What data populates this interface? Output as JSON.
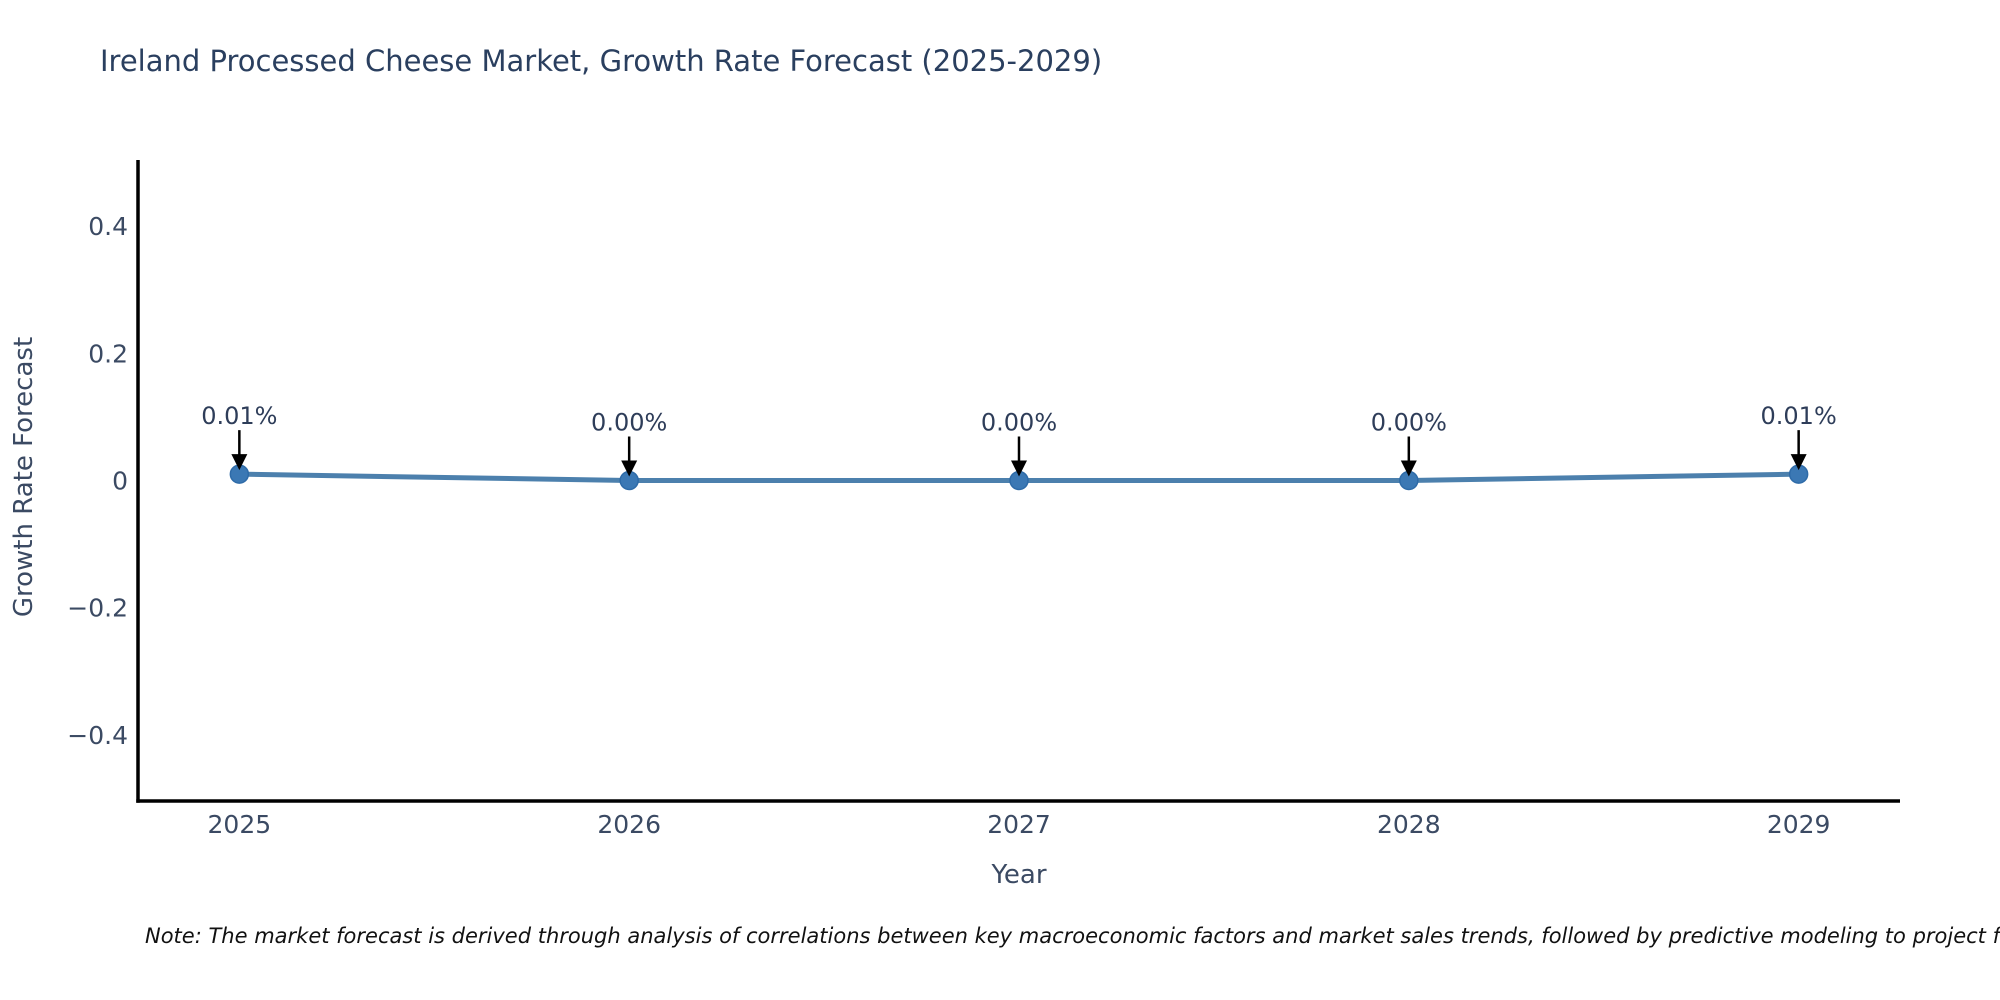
{
  "title": "Ireland Processed Cheese Market, Growth Rate Forecast (2025-2029)",
  "note": "Note: The market forecast is derived through analysis of correlations between key macroeconomic factors and market sales trends, followed by predictive modeling to project future sales.",
  "chart_data": {
    "type": "line",
    "title": "Ireland Processed Cheese Market, Growth Rate Forecast (2025-2029)",
    "xlabel": "Year",
    "ylabel": "Growth Rate Forecast",
    "x": [
      2025,
      2026,
      2027,
      2028,
      2029
    ],
    "values": [
      0.01,
      0.0,
      0.0,
      0.0,
      0.01
    ],
    "point_labels": [
      "0.01%",
      "0.00%",
      "0.00%",
      "0.00%",
      "0.01%"
    ],
    "xticks": [
      {
        "v": 2025,
        "label": "2025"
      },
      {
        "v": 2026,
        "label": "2026"
      },
      {
        "v": 2027,
        "label": "2027"
      },
      {
        "v": 2028,
        "label": "2028"
      },
      {
        "v": 2029,
        "label": "2029"
      }
    ],
    "yticks": [
      {
        "v": 0.4,
        "label": "0.4"
      },
      {
        "v": 0.2,
        "label": "0.2"
      },
      {
        "v": 0,
        "label": "0"
      },
      {
        "v": -0.2,
        "label": "−0.2"
      },
      {
        "v": -0.4,
        "label": "−0.4"
      }
    ],
    "xlim": [
      2024.74,
      2029.26
    ],
    "ylim": [
      -0.504,
      0.504
    ],
    "grid": false,
    "legend": "none",
    "colors": {
      "line": "#4c80ad",
      "marker": "#3b78b4",
      "marker_edge": "#2e6ba8",
      "arrow": "#000000",
      "axis": "#000000",
      "tick_text": "#3b4a63",
      "title_text": "#2a3f5f"
    }
  }
}
